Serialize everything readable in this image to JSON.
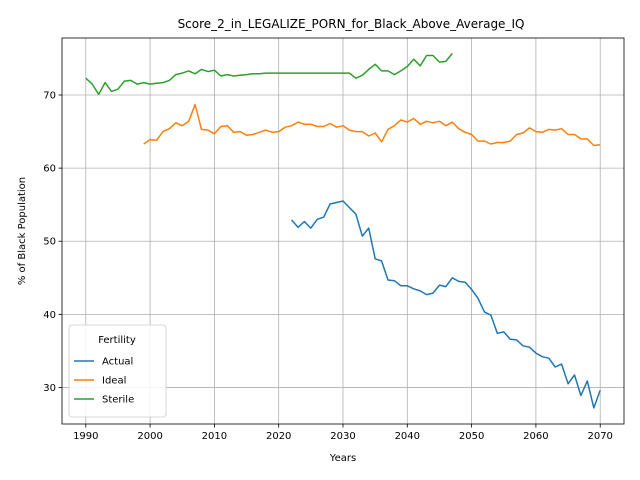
{
  "chart_data": {
    "type": "line",
    "title": "Score_2_in_LEGALIZE_PORN_for_Black_Above_Average_IQ",
    "xlabel": "Years",
    "ylabel": "% of Black Population",
    "xlim": [
      1986.3,
      2073.7
    ],
    "ylim": [
      25.0,
      77.8
    ],
    "xticks": [
      1990,
      2000,
      2010,
      2020,
      2030,
      2040,
      2050,
      2060,
      2070
    ],
    "yticks": [
      30,
      40,
      50,
      60,
      70
    ],
    "grid": true,
    "legend": {
      "title": "Fertility",
      "placement": "lower-left"
    },
    "series": [
      {
        "name": "Actual",
        "color": "#1f77b4",
        "x": [
          2022,
          2023,
          2024,
          2025,
          2026,
          2027,
          2028,
          2029,
          2030,
          2031,
          2032,
          2033,
          2034,
          2035,
          2036,
          2037,
          2038,
          2039,
          2040,
          2041,
          2042,
          2043,
          2044,
          2045,
          2046,
          2047,
          2048,
          2049,
          2050,
          2051,
          2052,
          2053,
          2054,
          2055,
          2056,
          2057,
          2058,
          2059,
          2060,
          2061,
          2062,
          2063,
          2064,
          2065,
          2066,
          2067,
          2068,
          2069,
          2070
        ],
        "y": [
          52.9,
          51.9,
          52.7,
          51.8,
          53.0,
          53.3,
          55.1,
          55.3,
          55.5,
          54.6,
          53.7,
          50.7,
          51.8,
          47.6,
          47.3,
          44.7,
          44.6,
          43.9,
          43.9,
          43.5,
          43.2,
          42.7,
          42.9,
          44.0,
          43.8,
          45.0,
          44.5,
          44.4,
          43.4,
          42.2,
          40.3,
          39.9,
          37.4,
          37.6,
          36.6,
          36.5,
          35.7,
          35.5,
          34.7,
          34.2,
          34.0,
          32.8,
          33.2,
          30.5,
          31.7,
          28.9,
          30.9,
          27.2,
          29.6
        ]
      },
      {
        "name": "Ideal",
        "color": "#ff7f0e",
        "x": [
          1999,
          2000,
          2001,
          2002,
          2003,
          2004,
          2005,
          2006,
          2007,
          2008,
          2009,
          2010,
          2011,
          2012,
          2013,
          2014,
          2015,
          2016,
          2017,
          2018,
          2019,
          2020,
          2021,
          2022,
          2023,
          2024,
          2025,
          2026,
          2027,
          2028,
          2029,
          2030,
          2031,
          2032,
          2033,
          2034,
          2035,
          2036,
          2037,
          2038,
          2039,
          2040,
          2041,
          2042,
          2043,
          2044,
          2045,
          2046,
          2047,
          2048,
          2049,
          2050,
          2051,
          2052,
          2053,
          2054,
          2055,
          2056,
          2057,
          2058,
          2059,
          2060,
          2061,
          2062,
          2063,
          2064,
          2065,
          2066,
          2067,
          2068,
          2069,
          2070
        ],
        "y": [
          63.3,
          63.9,
          63.8,
          65.0,
          65.4,
          66.2,
          65.8,
          66.4,
          68.7,
          65.3,
          65.2,
          64.7,
          65.7,
          65.8,
          64.9,
          65.0,
          64.5,
          64.6,
          64.9,
          65.2,
          64.9,
          65.0,
          65.6,
          65.8,
          66.3,
          66.0,
          66.0,
          65.7,
          65.7,
          66.1,
          65.6,
          65.8,
          65.2,
          65.0,
          65.0,
          64.4,
          64.8,
          63.6,
          65.3,
          65.8,
          66.6,
          66.3,
          66.8,
          66.0,
          66.4,
          66.2,
          66.4,
          65.8,
          66.3,
          65.4,
          64.9,
          64.6,
          63.7,
          63.7,
          63.3,
          63.5,
          63.5,
          63.7,
          64.6,
          64.8,
          65.5,
          65.0,
          64.9,
          65.3,
          65.2,
          65.4,
          64.6,
          64.6,
          64.0,
          64.0,
          63.1,
          63.2
        ]
      },
      {
        "name": "Sterile",
        "color": "#2ca02c",
        "x": [
          1990,
          1991,
          1992,
          1993,
          1994,
          1995,
          1996,
          1997,
          1998,
          1999,
          2000,
          2001,
          2002,
          2003,
          2004,
          2005,
          2006,
          2007,
          2008,
          2009,
          2010,
          2011,
          2012,
          2013,
          2014,
          2015,
          2016,
          2017,
          2018,
          2019,
          2020,
          2021,
          2022,
          2023,
          2024,
          2025,
          2026,
          2027,
          2028,
          2029,
          2030,
          2031,
          2032,
          2033,
          2034,
          2035,
          2036,
          2037,
          2038,
          2039,
          2040,
          2041,
          2042,
          2043,
          2044,
          2045,
          2046,
          2047
        ],
        "y": [
          72.3,
          71.5,
          70.1,
          71.7,
          70.5,
          70.8,
          71.9,
          72.0,
          71.5,
          71.7,
          71.5,
          71.6,
          71.7,
          72.0,
          72.8,
          73.0,
          73.3,
          72.9,
          73.5,
          73.2,
          73.4,
          72.6,
          72.8,
          72.6,
          72.7,
          72.8,
          72.9,
          72.9,
          73.0,
          73.0,
          73.0,
          73.0,
          73.0,
          73.0,
          73.0,
          73.0,
          73.0,
          73.0,
          73.0,
          73.0,
          73.0,
          73.0,
          72.3,
          72.7,
          73.5,
          74.2,
          73.3,
          73.3,
          72.8,
          73.3,
          73.9,
          74.9,
          74.0,
          75.4,
          75.4,
          74.5,
          74.6,
          75.7
        ]
      }
    ]
  }
}
